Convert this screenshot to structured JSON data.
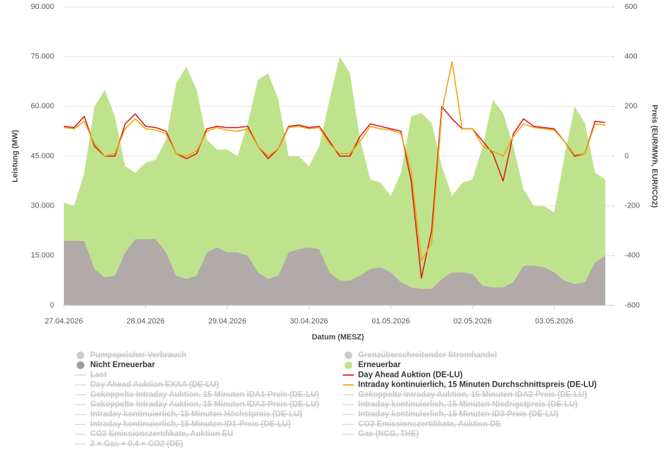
{
  "chart_data": {
    "type": "area-line",
    "y_label": "Leistung (MW)",
    "y2_label": "Preis (EUR/MWh, EUR/tCO2)",
    "x_label": "Datum (MESZ)",
    "grid": true,
    "xlim": [
      0,
      161
    ],
    "xticks": [
      {
        "value": 0,
        "label": "27.04.2026"
      },
      {
        "value": 24,
        "label": "28.04.2026"
      },
      {
        "value": 48,
        "label": "29.04.2026"
      },
      {
        "value": 72,
        "label": "30.04.2026"
      },
      {
        "value": 96,
        "label": "01.05.2026"
      },
      {
        "value": 120,
        "label": "02.05.2026"
      },
      {
        "value": 144,
        "label": "03.05.2026"
      }
    ],
    "ylim": [
      0,
      90000
    ],
    "yticks": [
      0,
      {
        "value": 15000,
        "label": "15.000"
      },
      {
        "value": 30000,
        "label": "30.000"
      },
      {
        "value": 45000,
        "label": "45.000"
      },
      {
        "value": 60000,
        "label": "60.000"
      },
      {
        "value": 75000,
        "label": "75.000"
      },
      {
        "value": 90000,
        "label": "90.000"
      }
    ],
    "y2lim": [
      -600,
      600
    ],
    "y2ticks": [
      -600,
      -400,
      -200,
      0,
      200,
      400,
      600
    ],
    "x": [
      0,
      3,
      6,
      9,
      12,
      15,
      18,
      21,
      24,
      27,
      30,
      33,
      36,
      39,
      42,
      45,
      48,
      51,
      54,
      57,
      60,
      63,
      66,
      69,
      72,
      75,
      78,
      81,
      84,
      87,
      90,
      93,
      96,
      99,
      102,
      105,
      108,
      111,
      114,
      117,
      120,
      123,
      126,
      129,
      132,
      135,
      138,
      141,
      144,
      147,
      150,
      153,
      156,
      159
    ],
    "series": [
      {
        "name": "Nicht Erneuerbar",
        "color": "#b1aaa8",
        "kind": "area",
        "stacked": true,
        "values": [
          19500,
          19500,
          19500,
          11000,
          8500,
          9000,
          16000,
          20000,
          20000,
          20000,
          16000,
          9000,
          8000,
          9000,
          16000,
          17500,
          16000,
          16000,
          15000,
          10000,
          8000,
          9000,
          16000,
          17000,
          17500,
          17000,
          10000,
          7500,
          7500,
          9000,
          11000,
          11500,
          10000,
          7000,
          5500,
          5000,
          5000,
          8000,
          10000,
          10000,
          9500,
          6000,
          5500,
          5500,
          7000,
          12000,
          12000,
          11500,
          10000,
          7500,
          6500,
          7000,
          13000,
          15000
        ]
      },
      {
        "name": "Erneuerbar",
        "color": "#bfe38c",
        "kind": "area",
        "stacked": true,
        "values": [
          11500,
          10500,
          20500,
          49000,
          56500,
          48000,
          26000,
          20000,
          23000,
          24000,
          34000,
          58000,
          64000,
          56000,
          34000,
          29500,
          31000,
          29000,
          40000,
          58000,
          62000,
          53000,
          29000,
          28000,
          24500,
          31000,
          52000,
          67500,
          62500,
          41000,
          27000,
          25500,
          23000,
          33000,
          51500,
          53000,
          50000,
          34000,
          23000,
          27000,
          28500,
          42000,
          56500,
          52500,
          41000,
          23000,
          18000,
          18500,
          18000,
          37500,
          53500,
          48000,
          27000,
          23000
        ]
      },
      {
        "name": "Day Ahead Auktion (DE-LU)",
        "color": "#d7191c",
        "kind": "line",
        "axis": "y2",
        "values": [
          120,
          115,
          160,
          40,
          0,
          0,
          130,
          170,
          120,
          115,
          100,
          10,
          -10,
          10,
          110,
          120,
          115,
          115,
          120,
          40,
          -10,
          30,
          120,
          125,
          115,
          120,
          60,
          0,
          0,
          80,
          130,
          120,
          110,
          100,
          -100,
          -490,
          -300,
          200,
          150,
          110,
          110,
          60,
          10,
          -100,
          90,
          150,
          120,
          115,
          110,
          60,
          0,
          10,
          140,
          135
        ]
      },
      {
        "name": "Intraday kontinuierlich, 15 Minuten Durchschnittspreis (DE-LU)",
        "color": "#f0a30a",
        "kind": "line",
        "axis": "y2",
        "values": [
          115,
          110,
          140,
          50,
          0,
          10,
          110,
          150,
          110,
          105,
          90,
          10,
          0,
          20,
          100,
          115,
          105,
          100,
          110,
          40,
          0,
          30,
          115,
          120,
          110,
          115,
          50,
          10,
          10,
          60,
          120,
          110,
          105,
          90,
          -60,
          -420,
          -350,
          180,
          380,
          110,
          110,
          40,
          20,
          0,
          80,
          130,
          115,
          110,
          105,
          60,
          5,
          10,
          130,
          125
        ]
      }
    ],
    "hidden_series": [
      {
        "name": "Pumpspeicher Verbrauch",
        "marker": "circle"
      },
      {
        "name": "Grenzüberschreitender Stromhandel",
        "marker": "circle"
      },
      {
        "name": "Last",
        "marker": "line"
      },
      {
        "name": "Day Ahead Auktion EXAA (DE-LU)",
        "marker": "line"
      },
      {
        "name": "Gekoppelte Intraday Auktion, 15 Minuten IDA1-Preis (DE-LU)",
        "marker": "line"
      },
      {
        "name": "Gekoppelte Intraday Auktion, 15 Minuten IDA2-Preis (DE-LU)",
        "marker": "line"
      },
      {
        "name": "Gekoppelte Intraday Auktion, 15 Minuten IDA3-Preis (DE-LU)",
        "marker": "line"
      },
      {
        "name": "Intraday kontinuierlich, 15 Minuten Niedrigstpreis (DE-LU)",
        "marker": "line"
      },
      {
        "name": "Intraday kontinuierlich, 15 Minuten Höchstpreis (DE-LU)",
        "marker": "line"
      },
      {
        "name": "Intraday kontinuierlich, 15 Minuten ID3-Preis (DE-LU)",
        "marker": "line"
      },
      {
        "name": "Intraday kontinuierlich, 15 Minuten ID1-Preis (DE-LU)",
        "marker": "line"
      },
      {
        "name": "CO2 Emissionszertifikate, Auktion DE",
        "marker": "line"
      },
      {
        "name": "CO2 Emissionszertifikate, Auktion EU",
        "marker": "line"
      },
      {
        "name": "Gas (NCG, THE)",
        "marker": "line"
      },
      {
        "name": "2 × Gas + 0,4 × CO2 (DE)",
        "marker": "line"
      }
    ]
  }
}
